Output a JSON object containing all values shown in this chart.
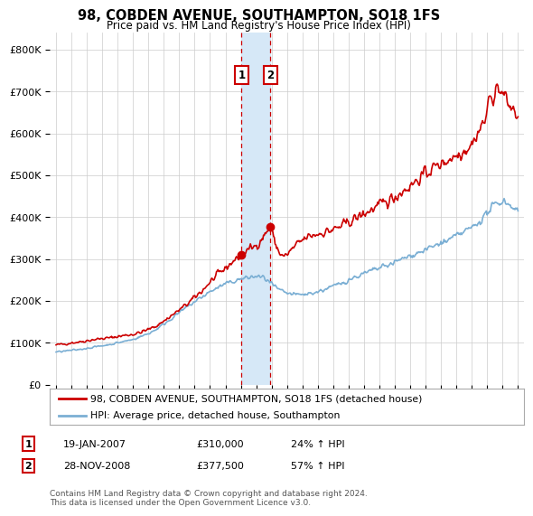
{
  "title": "98, COBDEN AVENUE, SOUTHAMPTON, SO18 1FS",
  "subtitle": "Price paid vs. HM Land Registry's House Price Index (HPI)",
  "ylabel_ticks": [
    "£0",
    "£100K",
    "£200K",
    "£300K",
    "£400K",
    "£500K",
    "£600K",
    "£700K",
    "£800K"
  ],
  "ytick_values": [
    0,
    100000,
    200000,
    300000,
    400000,
    500000,
    600000,
    700000,
    800000
  ],
  "ylim": [
    0,
    840000
  ],
  "xlim_start": 1994.6,
  "xlim_end": 2025.4,
  "transaction1_date": 2007.05,
  "transaction1_price": 310000,
  "transaction1_label": "1",
  "transaction2_date": 2008.91,
  "transaction2_price": 377500,
  "transaction2_label": "2",
  "legend_line1": "98, COBDEN AVENUE, SOUTHAMPTON, SO18 1FS (detached house)",
  "legend_line2": "HPI: Average price, detached house, Southampton",
  "table_row1": [
    "1",
    "19-JAN-2007",
    "£310,000",
    "24% ↑ HPI"
  ],
  "table_row2": [
    "2",
    "28-NOV-2008",
    "£377,500",
    "57% ↑ HPI"
  ],
  "footnote": "Contains HM Land Registry data © Crown copyright and database right 2024.\nThis data is licensed under the Open Government Licence v3.0.",
  "red_color": "#cc0000",
  "blue_color": "#7bafd4",
  "shade_color": "#d6e8f7",
  "grid_color": "#cccccc",
  "bg_color": "#ffffff",
  "xticks": [
    1995,
    1996,
    1997,
    1998,
    1999,
    2000,
    2001,
    2002,
    2003,
    2004,
    2005,
    2006,
    2007,
    2008,
    2009,
    2010,
    2011,
    2012,
    2013,
    2014,
    2015,
    2016,
    2017,
    2018,
    2019,
    2020,
    2021,
    2022,
    2023,
    2024,
    2025
  ],
  "red_anchors_x": [
    1995.0,
    1995.5,
    1996.0,
    1996.5,
    1997.0,
    1997.5,
    1998.0,
    1998.5,
    1999.0,
    1999.5,
    2000.0,
    2000.5,
    2001.0,
    2001.5,
    2002.0,
    2002.5,
    2003.0,
    2003.5,
    2004.0,
    2004.5,
    2005.0,
    2005.5,
    2006.0,
    2006.5,
    2007.0,
    2007.05,
    2007.3,
    2007.6,
    2007.9,
    2008.0,
    2008.5,
    2008.91,
    2009.0,
    2009.2,
    2009.5,
    2009.8,
    2010.0,
    2010.5,
    2011.0,
    2011.5,
    2012.0,
    2012.5,
    2013.0,
    2013.5,
    2014.0,
    2014.5,
    2015.0,
    2015.5,
    2016.0,
    2016.5,
    2017.0,
    2017.5,
    2018.0,
    2018.5,
    2019.0,
    2019.5,
    2020.0,
    2020.5,
    2021.0,
    2021.5,
    2022.0,
    2022.3,
    2022.6,
    2022.9,
    2023.0,
    2023.3,
    2023.7,
    2024.0,
    2024.3,
    2024.7,
    2025.0
  ],
  "red_anchors_y": [
    95000,
    97000,
    100000,
    102000,
    105000,
    108000,
    110000,
    112000,
    115000,
    118000,
    120000,
    125000,
    132000,
    140000,
    152000,
    165000,
    178000,
    192000,
    208000,
    225000,
    245000,
    262000,
    278000,
    295000,
    308000,
    310000,
    318000,
    325000,
    330000,
    332000,
    355000,
    377500,
    370000,
    340000,
    315000,
    305000,
    310000,
    330000,
    345000,
    355000,
    360000,
    365000,
    370000,
    378000,
    388000,
    398000,
    408000,
    418000,
    428000,
    438000,
    448000,
    462000,
    475000,
    490000,
    505000,
    518000,
    528000,
    538000,
    548000,
    560000,
    575000,
    595000,
    615000,
    635000,
    660000,
    690000,
    710000,
    695000,
    675000,
    655000,
    640000
  ],
  "blue_anchors_x": [
    1995.0,
    1995.5,
    1996.0,
    1996.5,
    1997.0,
    1997.5,
    1998.0,
    1998.5,
    1999.0,
    1999.5,
    2000.0,
    2000.5,
    2001.0,
    2001.5,
    2002.0,
    2002.5,
    2003.0,
    2003.5,
    2004.0,
    2004.5,
    2005.0,
    2005.5,
    2006.0,
    2006.5,
    2007.0,
    2007.5,
    2008.0,
    2008.5,
    2009.0,
    2009.5,
    2010.0,
    2010.5,
    2011.0,
    2011.5,
    2012.0,
    2012.5,
    2013.0,
    2013.5,
    2014.0,
    2014.5,
    2015.0,
    2015.5,
    2016.0,
    2016.5,
    2017.0,
    2017.5,
    2018.0,
    2018.5,
    2019.0,
    2019.5,
    2020.0,
    2020.5,
    2021.0,
    2021.5,
    2022.0,
    2022.5,
    2023.0,
    2023.5,
    2024.0,
    2024.5,
    2025.0
  ],
  "blue_anchors_y": [
    78000,
    80000,
    82000,
    84000,
    87000,
    90000,
    93000,
    96000,
    100000,
    104000,
    108000,
    115000,
    122000,
    132000,
    145000,
    158000,
    172000,
    185000,
    198000,
    210000,
    222000,
    232000,
    240000,
    247000,
    252000,
    256000,
    258000,
    256000,
    240000,
    225000,
    218000,
    215000,
    215000,
    218000,
    222000,
    228000,
    235000,
    242000,
    250000,
    258000,
    265000,
    272000,
    278000,
    285000,
    292000,
    300000,
    308000,
    315000,
    322000,
    330000,
    338000,
    345000,
    355000,
    365000,
    375000,
    390000,
    410000,
    430000,
    440000,
    430000,
    415000
  ]
}
